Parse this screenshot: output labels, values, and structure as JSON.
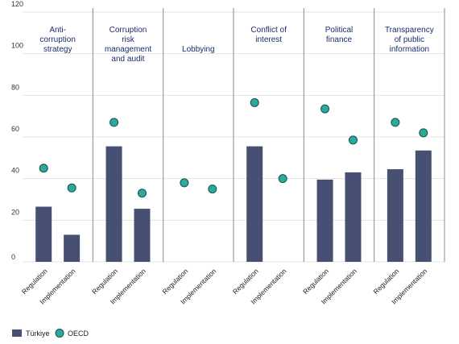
{
  "chart_data": {
    "type": "bar",
    "ylim": [
      0,
      120
    ],
    "yticks": [
      0,
      20,
      40,
      60,
      80,
      100,
      120
    ],
    "panels": [
      {
        "title": "Anti-corruption strategy",
        "title_lines": [
          "Anti-",
          "corruption",
          "strategy"
        ],
        "categories": [
          "Regulation",
          "Implementation"
        ],
        "turkiye": [
          26.5,
          13
        ],
        "oecd": [
          45,
          35.5
        ]
      },
      {
        "title": "Corruption risk management and audit",
        "title_lines": [
          "Corruption",
          "risk",
          "management",
          "and audit"
        ],
        "categories": [
          "Regulation",
          "Implementation"
        ],
        "turkiye": [
          55.5,
          25.5
        ],
        "oecd": [
          67,
          33
        ]
      },
      {
        "title": "Lobbying",
        "title_lines": [
          "Lobbying"
        ],
        "categories": [
          "Regulation",
          "Implementation"
        ],
        "turkiye": [
          null,
          null
        ],
        "oecd": [
          38,
          35
        ]
      },
      {
        "title": "Conflict of interest",
        "title_lines": [
          "Conflict of",
          "interest"
        ],
        "categories": [
          "Regulation",
          "Implementation"
        ],
        "turkiye": [
          55.5,
          null
        ],
        "oecd": [
          76.5,
          40
        ]
      },
      {
        "title": "Political finance",
        "title_lines": [
          "Political",
          "finance"
        ],
        "categories": [
          "Regulation",
          "Implementation"
        ],
        "turkiye": [
          39.5,
          43
        ],
        "oecd": [
          73.5,
          58.5
        ]
      },
      {
        "title": "Transparency of public information",
        "title_lines": [
          "Transparency",
          "of public",
          "information"
        ],
        "categories": [
          "Regulation",
          "Implementation"
        ],
        "turkiye": [
          44.5,
          53.5
        ],
        "oecd": [
          67,
          62
        ]
      }
    ],
    "series": [
      {
        "name": "Türkiye",
        "kind": "bar",
        "color": "#474f73"
      },
      {
        "name": "OECD",
        "kind": "marker",
        "color": "#2ba99a",
        "stroke": "#1c4f4a"
      }
    ],
    "legend_position": "bottom-left",
    "grid": true
  }
}
